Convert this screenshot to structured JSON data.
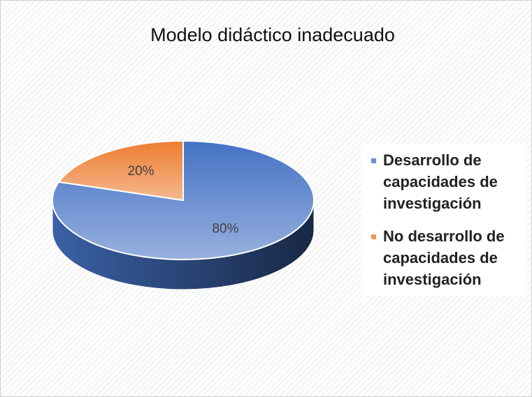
{
  "chart_data": {
    "type": "pie",
    "title": "Modelo didáctico inadecuado",
    "series": [
      {
        "name": "Desarrollo de capacidades de investigación",
        "color": "#4472c4",
        "values": [
          80
        ],
        "value_labels": [
          "80%"
        ]
      },
      {
        "name": "No desarrollo de capacidades de investigación",
        "color": "#ed7d31",
        "values": [
          20
        ],
        "value_labels": [
          "20%"
        ]
      }
    ],
    "legend": "right"
  }
}
